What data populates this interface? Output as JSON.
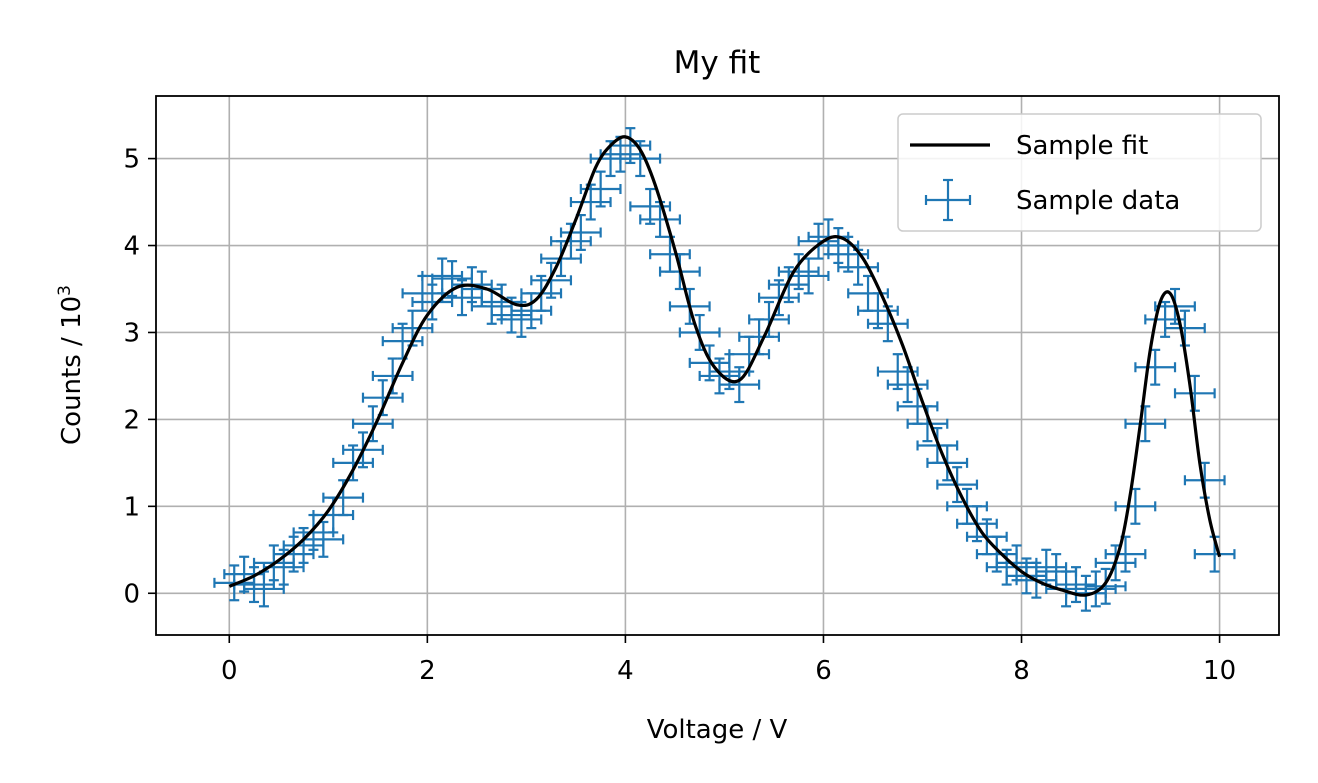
{
  "chart_data": {
    "type": "scatter",
    "title": "My fit",
    "xlabel": "Voltage / V",
    "ylabel": "Counts / 10",
    "ylabel_superscript": "3",
    "xlim": [
      -0.74,
      10.6
    ],
    "ylim": [
      -0.48,
      5.72
    ],
    "xticks": [
      0,
      2,
      4,
      6,
      8,
      10
    ],
    "yticks": [
      0,
      1,
      2,
      3,
      4,
      5
    ],
    "grid": true,
    "legend_position": "top-right",
    "colors": {
      "data": "#1f77b4",
      "fit": "#000000",
      "grid": "#b0b0b0"
    },
    "series": [
      {
        "name": "Sample fit",
        "kind": "line",
        "x": [
          0,
          0.25,
          0.5,
          0.75,
          1.0,
          1.25,
          1.5,
          1.75,
          2.0,
          2.3,
          2.6,
          2.9,
          3.1,
          3.3,
          3.5,
          3.7,
          3.85,
          4.0,
          4.15,
          4.3,
          4.5,
          4.7,
          4.9,
          5.15,
          5.4,
          5.7,
          6.0,
          6.2,
          6.4,
          6.6,
          6.8,
          7.0,
          7.2,
          7.4,
          7.6,
          7.8,
          8.0,
          8.2,
          8.4,
          8.65,
          8.85,
          9.0,
          9.1,
          9.2,
          9.3,
          9.4,
          9.5,
          9.6,
          9.7,
          9.8,
          9.9,
          10.0
        ],
        "y": [
          0.08,
          0.2,
          0.38,
          0.62,
          0.95,
          1.42,
          2.0,
          2.65,
          3.2,
          3.52,
          3.5,
          3.32,
          3.38,
          3.75,
          4.3,
          4.9,
          5.15,
          5.25,
          5.1,
          4.7,
          3.95,
          3.1,
          2.6,
          2.45,
          2.95,
          3.7,
          4.05,
          4.08,
          3.85,
          3.4,
          2.85,
          2.2,
          1.6,
          1.1,
          0.7,
          0.45,
          0.25,
          0.12,
          0.04,
          -0.02,
          0.12,
          0.55,
          1.15,
          1.95,
          2.8,
          3.35,
          3.45,
          3.1,
          2.4,
          1.5,
          0.85,
          0.42
        ]
      },
      {
        "name": "Sample data",
        "kind": "errorbar",
        "x": [
          0.05,
          0.15,
          0.25,
          0.35,
          0.45,
          0.55,
          0.65,
          0.75,
          0.85,
          0.95,
          1.05,
          1.15,
          1.25,
          1.35,
          1.45,
          1.55,
          1.65,
          1.75,
          1.85,
          1.95,
          2.05,
          2.15,
          2.25,
          2.35,
          2.45,
          2.55,
          2.65,
          2.75,
          2.85,
          2.95,
          3.05,
          3.15,
          3.25,
          3.35,
          3.45,
          3.55,
          3.65,
          3.75,
          3.85,
          3.95,
          4.05,
          4.15,
          4.25,
          4.35,
          4.45,
          4.55,
          4.65,
          4.75,
          4.85,
          4.95,
          5.05,
          5.15,
          5.25,
          5.35,
          5.45,
          5.55,
          5.65,
          5.75,
          5.85,
          5.95,
          6.05,
          6.15,
          6.25,
          6.35,
          6.45,
          6.55,
          6.65,
          6.75,
          6.85,
          6.95,
          7.05,
          7.15,
          7.25,
          7.35,
          7.45,
          7.55,
          7.65,
          7.75,
          7.85,
          7.95,
          8.05,
          8.15,
          8.25,
          8.35,
          8.45,
          8.55,
          8.65,
          8.75,
          8.85,
          8.95,
          9.05,
          9.15,
          9.25,
          9.35,
          9.45,
          9.55,
          9.65,
          9.75,
          9.85,
          9.95
        ],
        "y": [
          0.12,
          0.22,
          0.1,
          0.05,
          0.35,
          0.3,
          0.45,
          0.55,
          0.7,
          0.62,
          0.9,
          1.1,
          1.5,
          1.65,
          1.95,
          2.25,
          2.5,
          2.9,
          3.05,
          3.45,
          3.35,
          3.65,
          3.62,
          3.4,
          3.55,
          3.5,
          3.3,
          3.35,
          3.2,
          3.15,
          3.25,
          3.45,
          3.6,
          3.85,
          4.05,
          4.15,
          4.5,
          4.65,
          5.0,
          5.05,
          5.15,
          5.0,
          4.45,
          4.3,
          3.9,
          3.7,
          3.3,
          3.0,
          2.65,
          2.5,
          2.55,
          2.4,
          2.75,
          2.95,
          3.15,
          3.4,
          3.55,
          3.7,
          3.65,
          4.05,
          4.1,
          4.0,
          3.9,
          3.75,
          3.45,
          3.25,
          3.1,
          2.55,
          2.4,
          2.15,
          1.95,
          1.7,
          1.5,
          1.25,
          1.0,
          0.8,
          0.65,
          0.45,
          0.3,
          0.35,
          0.2,
          0.15,
          0.3,
          0.25,
          0.05,
          0.1,
          0.0,
          0.05,
          0.08,
          0.35,
          0.45,
          1.0,
          1.95,
          2.6,
          3.15,
          3.3,
          3.05,
          2.3,
          1.3,
          0.45
        ],
        "xerr": 0.2,
        "yerr": 0.2
      }
    ]
  }
}
